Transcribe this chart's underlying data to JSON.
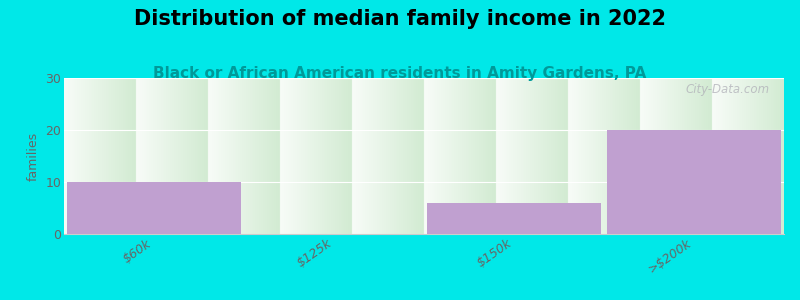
{
  "title": "Distribution of median family income in 2022",
  "subtitle": "Black or African American residents in Amity Gardens, PA",
  "title_fontsize": 15,
  "subtitle_fontsize": 11,
  "ylabel": "families",
  "ylabel_fontsize": 9,
  "categories": [
    "$60k",
    "$125k",
    "$150k",
    ">$200k"
  ],
  "values": [
    10,
    0,
    6,
    20
  ],
  "bar_color": "#c0a0d0",
  "background_color": "#00e8e8",
  "plot_bg_top": "#f5f8f2",
  "plot_bg_bottom": "#d5ecd5",
  "ylim": [
    0,
    30
  ],
  "yticks": [
    0,
    10,
    20,
    30
  ],
  "watermark": "City-Data.com",
  "title_color": "#000000",
  "subtitle_color": "#009999",
  "tick_label_color": "#666666",
  "grid_color": "#e0e8e0",
  "spine_color": "#cccccc"
}
